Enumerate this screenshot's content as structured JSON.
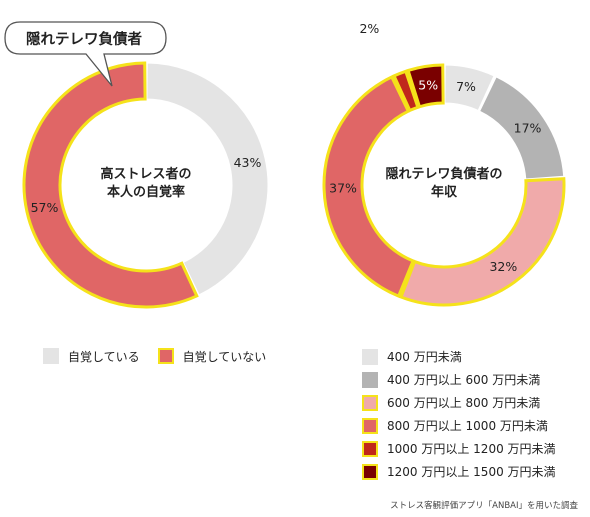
{
  "callout": "隠れテレワ負債者",
  "source": "ストレス客観評価アプリ「ANBAI」を用いた調査",
  "colors": {
    "highlight_border": "#f5e21a",
    "light_gray": "#e4e4e4",
    "mid_gray": "#b3b3b3",
    "pink": "#f0aaaa",
    "red": "#e06666",
    "crimson": "#c0281c",
    "dark_red": "#7a0000"
  },
  "chart_data": [
    {
      "type": "pie",
      "title": "高ストレス者の本人の自覚率",
      "title_lines": [
        "高ストレス者の",
        "本人の自覚率"
      ],
      "categories": [
        "自覚している",
        "自覚していない"
      ],
      "values": [
        43,
        57
      ],
      "labels": [
        "43%",
        "57%"
      ],
      "colors": [
        "#e4e4e4",
        "#e06666"
      ],
      "highlighted": [
        false,
        true
      ],
      "legend": "bottom"
    },
    {
      "type": "pie",
      "title": "隠れテレワ負債者の年収",
      "title_lines": [
        "隠れテレワ負債者の",
        "年収"
      ],
      "categories": [
        "400 万円未満",
        "400 万円以上 600 万円未満",
        "600 万円以上 800 万円未満",
        "800 万円以上 1000 万円未満",
        "1000 万円以上 1200 万円未満",
        "1200 万円以上 1500 万円未満"
      ],
      "values": [
        7,
        17,
        32,
        37,
        2,
        5
      ],
      "labels": [
        "7%",
        "17%",
        "32%",
        "37%",
        "2%",
        "5%"
      ],
      "colors": [
        "#e4e4e4",
        "#b3b3b3",
        "#f0aaaa",
        "#e06666",
        "#c0281c",
        "#7a0000"
      ],
      "highlighted": [
        false,
        false,
        true,
        true,
        true,
        true
      ],
      "legend": "bottom-right"
    }
  ]
}
